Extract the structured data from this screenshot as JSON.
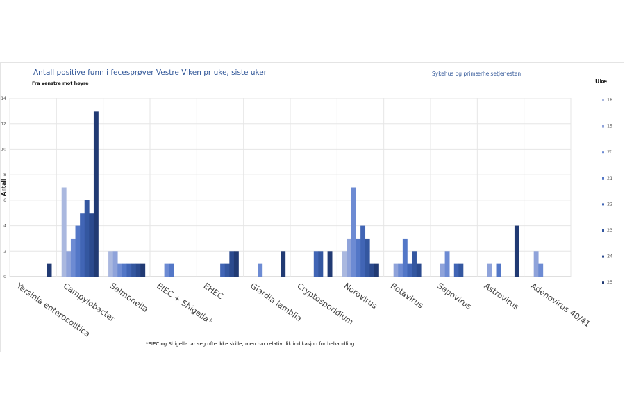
{
  "chart_data": {
    "type": "bar",
    "title": "Antall positive funn i fecesprøver Vestre Viken pr uke, siste uker",
    "subtitle": "Fra venstre mot høyre",
    "source": "Sykehus og primærhelsetjenesten",
    "ylabel": "Antall",
    "xlabel": "",
    "ylim": [
      0,
      14
    ],
    "yticks": [
      0,
      2,
      4,
      6,
      8,
      10,
      12,
      14
    ],
    "ytick_labels": [
      "0",
      "2",
      "4",
      "6",
      "8",
      "10",
      "12",
      "14"
    ],
    "grid": true,
    "legend_title": "Uke",
    "legend_position": "right",
    "categories": [
      "Yersinia enterocolitica",
      "Campylobacter",
      "Salmonella",
      "EIEC + Shigella*",
      "EHEC",
      "Giardia lamblia",
      "Cryptosporidium",
      "Norovirus",
      "Rotavirus",
      "Sapovirus",
      "Astrovirus",
      "Adenovirus 40/41"
    ],
    "series": [
      {
        "name": "18",
        "color": "#aab8df",
        "values": [
          0,
          7,
          2,
          0,
          0,
          0,
          0,
          2,
          0,
          0,
          0,
          0
        ]
      },
      {
        "name": "19",
        "color": "#8fa3da",
        "values": [
          0,
          2,
          2,
          0,
          0,
          0,
          0,
          3,
          1,
          1,
          1,
          2
        ]
      },
      {
        "name": "20",
        "color": "#6d8bd3",
        "values": [
          0,
          3,
          1,
          1,
          0,
          1,
          0,
          7,
          1,
          2,
          0,
          1
        ]
      },
      {
        "name": "21",
        "color": "#5377c7",
        "values": [
          0,
          4,
          1,
          1,
          0,
          0,
          0,
          3,
          3,
          0,
          1,
          0
        ]
      },
      {
        "name": "22",
        "color": "#4165b5",
        "values": [
          0,
          5,
          1,
          0,
          1,
          0,
          2,
          4,
          1,
          1,
          0,
          0
        ]
      },
      {
        "name": "23",
        "color": "#3457a0",
        "values": [
          0,
          6,
          1,
          0,
          1,
          0,
          2,
          3,
          2,
          1,
          0,
          0
        ]
      },
      {
        "name": "24",
        "color": "#2b4a8e",
        "values": [
          0,
          5,
          1,
          0,
          2,
          0,
          0,
          1,
          1,
          0,
          0,
          0
        ]
      },
      {
        "name": "25",
        "color": "#213a73",
        "values": [
          1,
          13,
          1,
          0,
          2,
          2,
          2,
          1,
          0,
          0,
          4,
          0
        ]
      }
    ]
  },
  "footnote": "*EIEC og Shigella lar seg ofte ikke skille, men har relativt lik indikasjon for behandling"
}
